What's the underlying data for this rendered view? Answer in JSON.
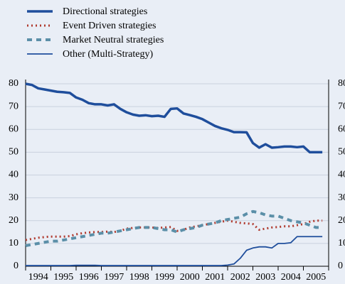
{
  "chart_data": {
    "type": "line",
    "x": [
      1994,
      1994.25,
      1994.5,
      1994.75,
      1995,
      1995.25,
      1995.5,
      1995.75,
      1996,
      1996.25,
      1996.5,
      1996.75,
      1997,
      1997.25,
      1997.5,
      1997.75,
      1998,
      1998.25,
      1998.5,
      1998.75,
      1999,
      1999.25,
      1999.5,
      1999.75,
      2000,
      2000.25,
      2000.5,
      2000.75,
      2001,
      2001.25,
      2001.5,
      2001.75,
      2002,
      2002.25,
      2002.5,
      2002.75,
      2003,
      2003.25,
      2003.5,
      2003.75,
      2004,
      2004.25,
      2004.5,
      2004.75,
      2005,
      2005.25,
      2005.5,
      2005.75
    ],
    "series": [
      {
        "name": "Directional strategies",
        "color": "#1f4e9c",
        "width": 3.5,
        "dash": "none",
        "values": [
          80,
          79.5,
          78,
          77.5,
          77,
          76.5,
          76.3,
          76,
          74,
          73,
          71.5,
          71,
          71,
          70.5,
          71,
          69,
          67.5,
          66.5,
          66,
          66.2,
          65.8,
          66,
          65.5,
          69,
          69.2,
          67,
          66.3,
          65.5,
          64.5,
          63,
          61.5,
          60.5,
          59.8,
          58.8,
          58.8,
          58.7,
          54,
          52,
          53.5,
          52,
          52.2,
          52.5,
          52.5,
          52.2,
          52.5,
          50,
          50,
          50
        ]
      },
      {
        "name": "Event Driven strategies",
        "color": "#b03a2e",
        "width": 3,
        "dash": "2 4",
        "values": [
          11.5,
          12,
          12.5,
          12.8,
          13,
          13,
          13,
          13.2,
          14,
          14.5,
          14.8,
          15,
          15,
          15.2,
          15,
          15.5,
          16.5,
          16.8,
          17,
          17,
          17,
          16.8,
          17,
          17.2,
          15.5,
          16,
          17,
          17.5,
          18,
          18.5,
          19,
          19.5,
          20,
          19.5,
          19,
          18.8,
          18.5,
          16,
          16.5,
          17,
          17.2,
          17.5,
          17.5,
          18,
          18.5,
          19.5,
          20,
          20
        ]
      },
      {
        "name": "Market Neutral strategies",
        "color": "#5b8fa8",
        "width": 4,
        "dash": "7 6",
        "values": [
          9,
          9.5,
          10,
          10.5,
          11,
          11,
          11.5,
          12,
          12.5,
          13,
          13.5,
          14,
          14.5,
          14.5,
          15,
          15.5,
          16,
          16.5,
          17,
          17,
          17,
          16.5,
          16,
          16,
          15,
          16,
          16.5,
          17,
          18,
          18.5,
          19,
          20,
          20.5,
          21,
          21.5,
          23,
          24,
          23.5,
          22.5,
          22,
          22,
          21,
          20,
          19.5,
          19,
          18,
          17,
          17
        ]
      },
      {
        "name": "Other (Multi-Strategy)",
        "color": "#1f4e9c",
        "width": 1.8,
        "dash": "none",
        "values": [
          0.3,
          0.3,
          0.3,
          0.3,
          0.3,
          0.3,
          0.3,
          0.3,
          0.4,
          0.4,
          0.4,
          0.4,
          0.3,
          0.3,
          0.3,
          0.3,
          0.3,
          0.3,
          0.3,
          0.3,
          0.3,
          0.3,
          0.3,
          0.3,
          0.3,
          0.3,
          0.3,
          0.3,
          0.3,
          0.3,
          0.3,
          0.3,
          0.5,
          1,
          3.5,
          7,
          8,
          8.5,
          8.5,
          8,
          10,
          10,
          10.3,
          13,
          13,
          13,
          13,
          13
        ]
      }
    ],
    "xlim": [
      1994,
      2006
    ],
    "xticks": [
      {
        "value": 1994.5,
        "label": "1994"
      },
      {
        "value": 1995.5,
        "label": "1995"
      },
      {
        "value": 1996.5,
        "label": "1996"
      },
      {
        "value": 1997.5,
        "label": "1997"
      },
      {
        "value": 1998.5,
        "label": "1998"
      },
      {
        "value": 1999.5,
        "label": "1999"
      },
      {
        "value": 2000.5,
        "label": "2000"
      },
      {
        "value": 2001.5,
        "label": "2001"
      },
      {
        "value": 2002.5,
        "label": "2002"
      },
      {
        "value": 2003.5,
        "label": "2003"
      },
      {
        "value": 2004.5,
        "label": "2004"
      },
      {
        "value": 2005.5,
        "label": "2005"
      }
    ],
    "ylim": [
      0,
      80
    ],
    "yticks": [
      0,
      10,
      20,
      30,
      40,
      50,
      60,
      70,
      80
    ],
    "y2lim": [
      0,
      80
    ],
    "y2ticks": [
      0,
      10,
      20,
      30,
      40,
      50,
      60,
      70,
      80
    ],
    "grid": true
  }
}
